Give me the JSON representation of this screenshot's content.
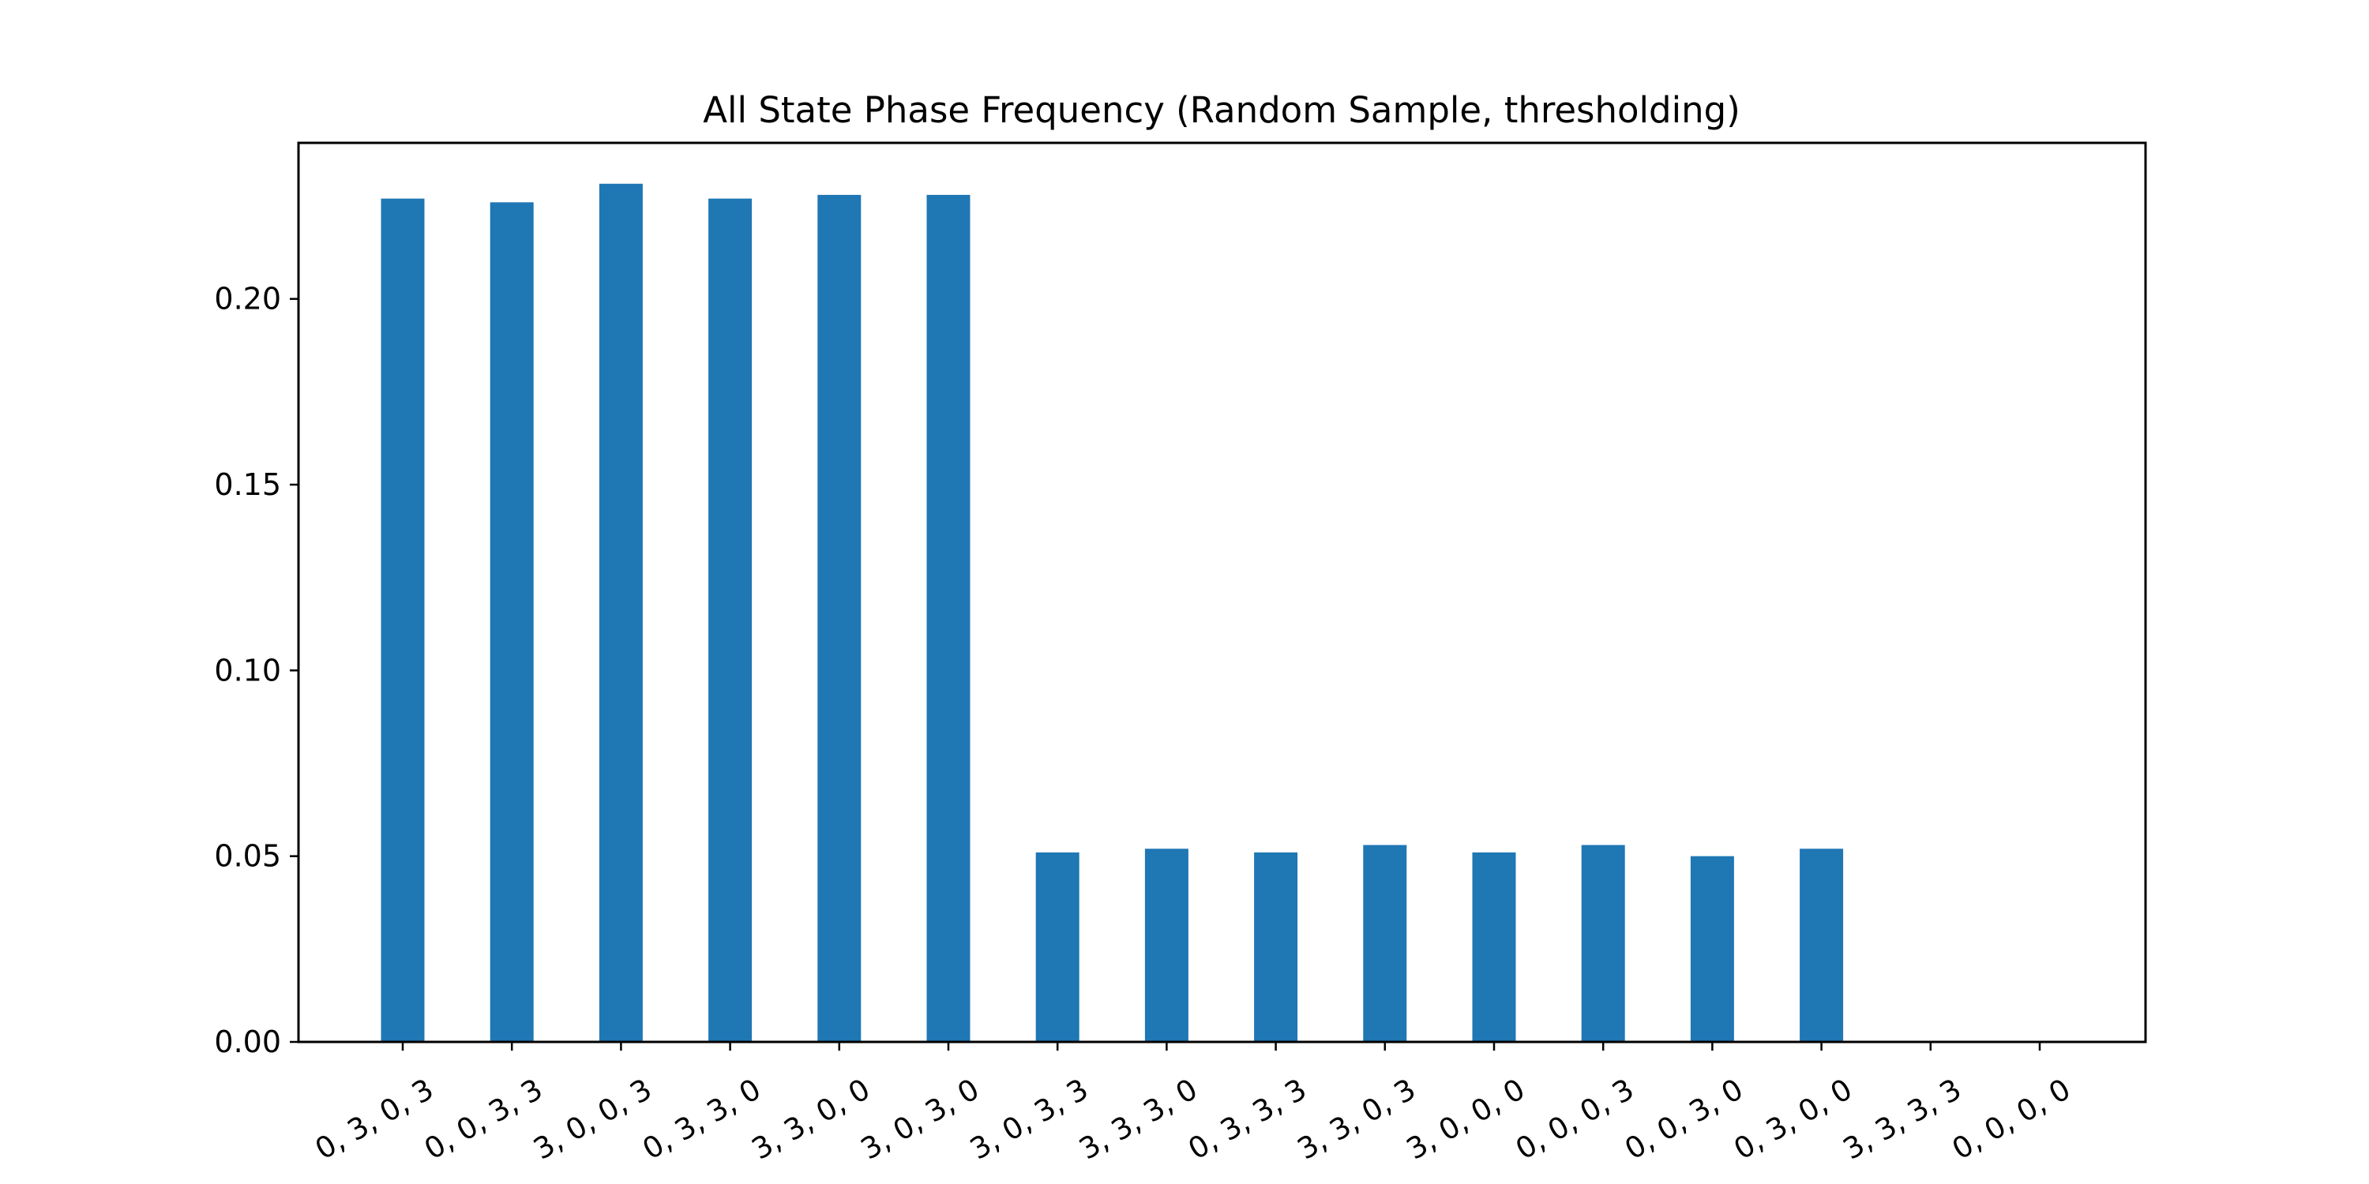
{
  "chart_data": {
    "type": "bar",
    "title": "All State Phase Frequency (Random Sample, thresholding)",
    "xlabel": "",
    "ylabel": "",
    "categories": [
      "0, 3, 0, 3",
      "0, 0, 3, 3",
      "3, 0, 0, 3",
      "0, 3, 3, 0",
      "3, 3, 0, 0",
      "3, 0, 3, 0",
      "3, 0, 3, 3",
      "3, 3, 3, 0",
      "0, 3, 3, 3",
      "3, 3, 0, 3",
      "3, 0, 0, 0",
      "0, 0, 0, 3",
      "0, 0, 3, 0",
      "0, 3, 0, 0",
      "3, 3, 3, 3",
      "0, 0, 0, 0"
    ],
    "values": [
      0.227,
      0.226,
      0.231,
      0.227,
      0.228,
      0.228,
      0.051,
      0.052,
      0.051,
      0.053,
      0.051,
      0.053,
      0.05,
      0.052,
      0.0,
      0.0
    ],
    "ylim": [
      0,
      0.242
    ],
    "yticks": [
      0.0,
      0.05,
      0.1,
      0.15,
      0.2
    ],
    "ytick_labels": [
      "0.00",
      "0.05",
      "0.10",
      "0.15",
      "0.20"
    ],
    "grid": false,
    "bar_color": "#1f77b4"
  }
}
